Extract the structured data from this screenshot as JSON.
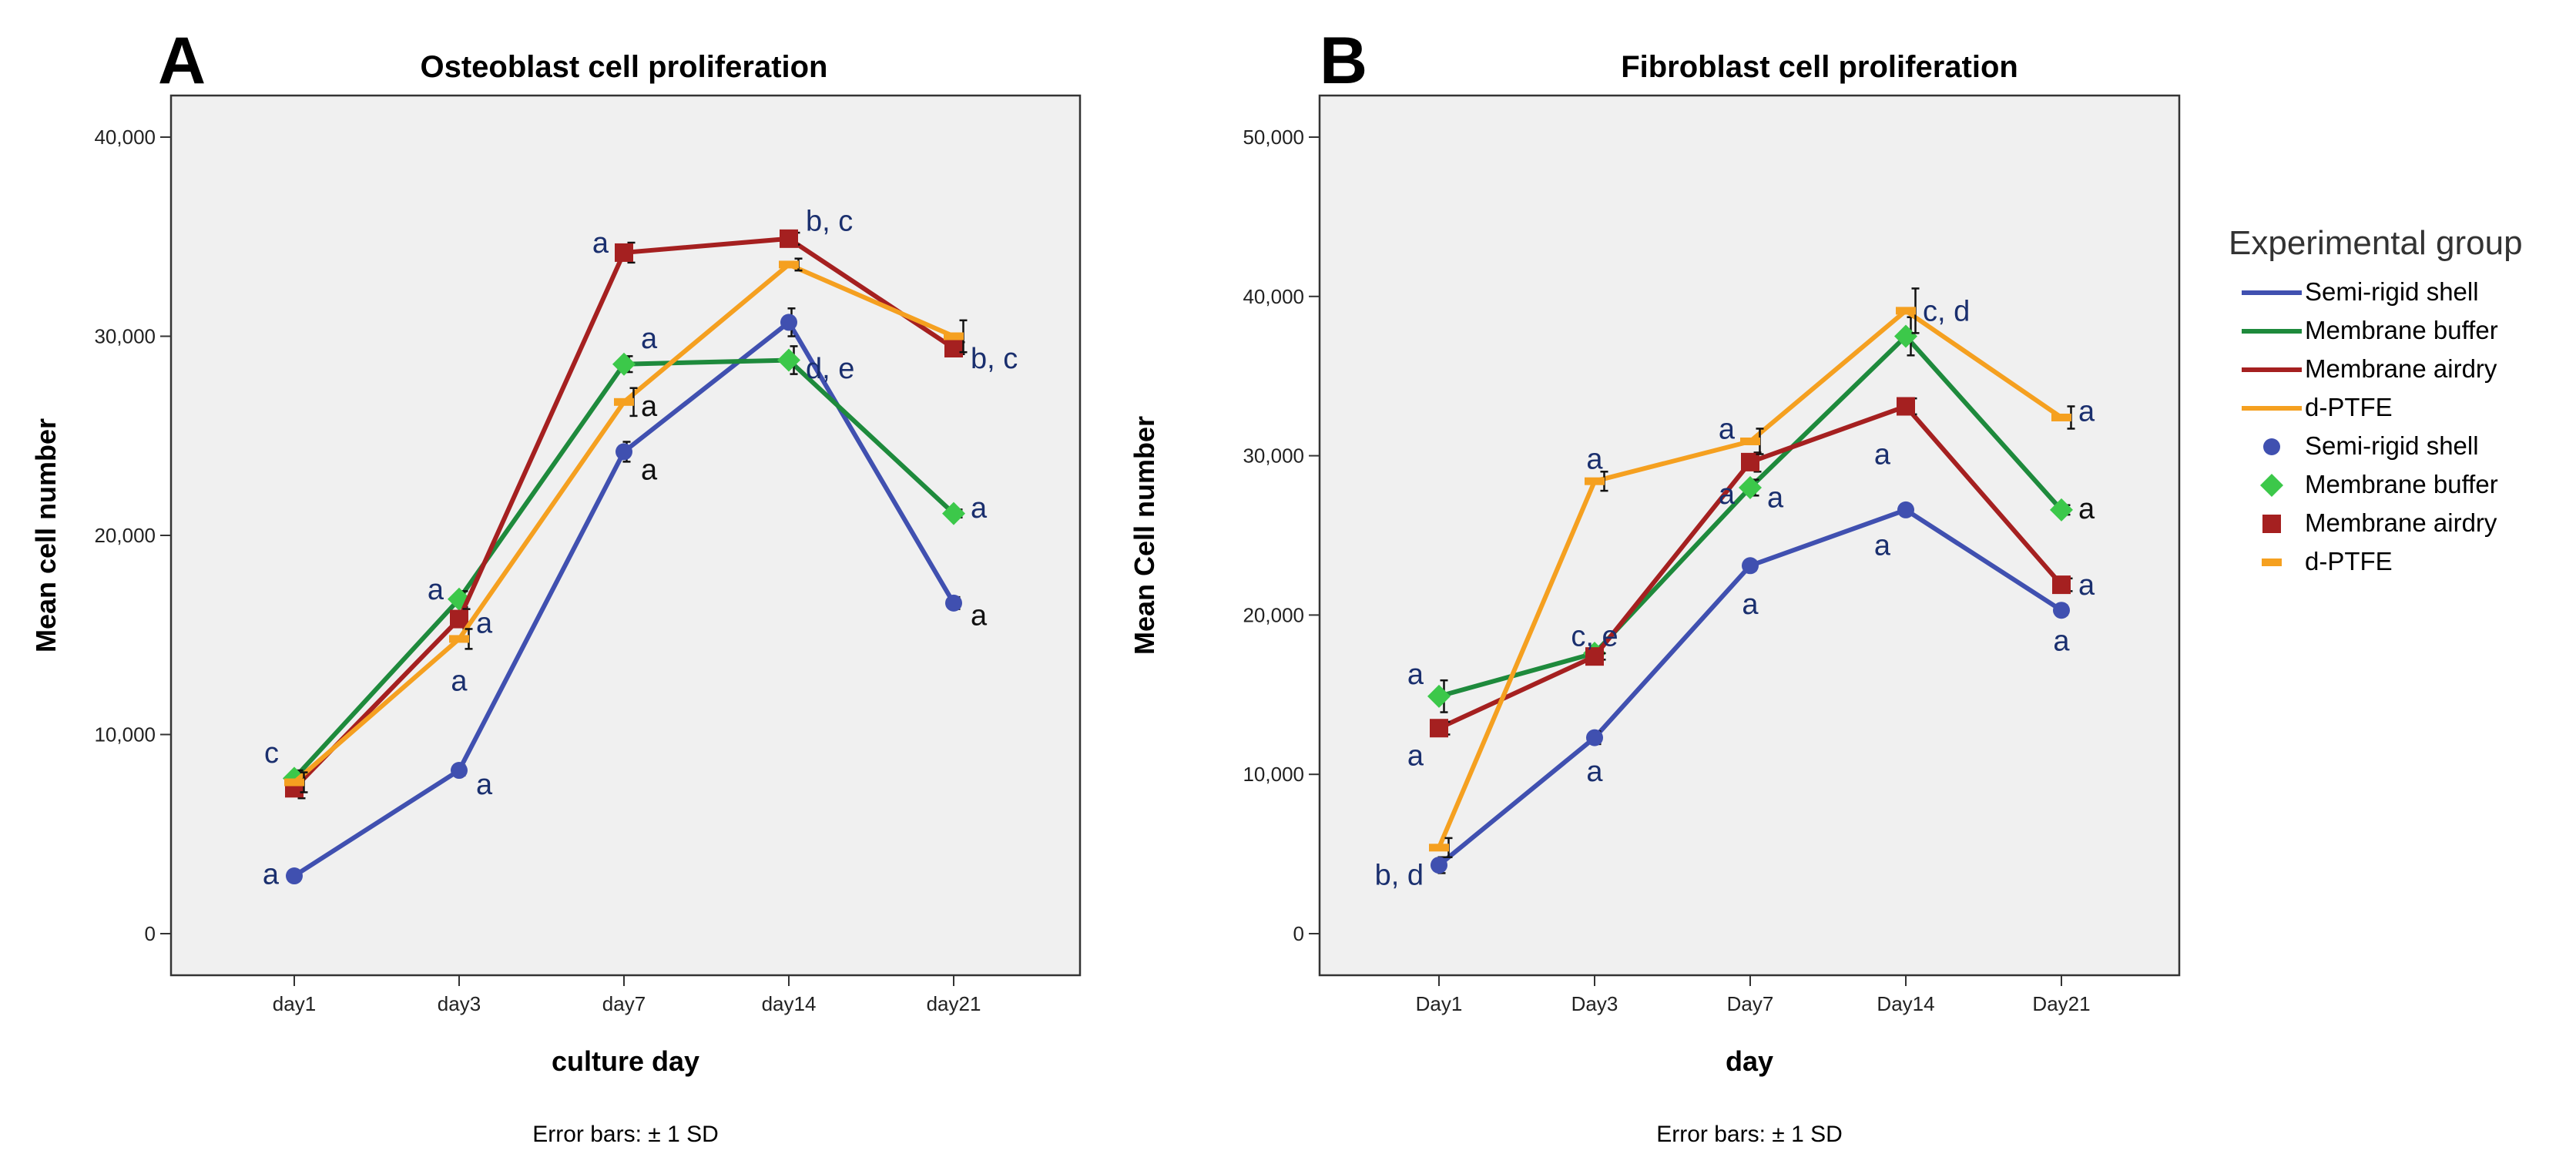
{
  "figure_footnote": "Error bars: ± 1  SD",
  "legend": {
    "title": "Experimental group",
    "line_entries": [
      "Semi-rigid shell",
      "Membrane buffer",
      "Membrane airdry",
      "d-PTFE"
    ],
    "marker_entries": [
      "Semi-rigid shell",
      "Membrane buffer",
      "Membrane airdry",
      "d-PTFE"
    ]
  },
  "series_style": [
    {
      "name": "Semi-rigid shell",
      "color": "#4050b0",
      "marker": "circle"
    },
    {
      "name": "Membrane buffer",
      "color": "#1e8a3c",
      "marker_color": "#3cc84a",
      "marker": "diamond"
    },
    {
      "name": "Membrane airdry",
      "color": "#a52020",
      "marker": "square"
    },
    {
      "name": "d-PTFE",
      "color": "#f5a020",
      "marker": "dash"
    }
  ],
  "annotation_colors": {
    "navy": "#1a2f6e",
    "black": "#111111"
  },
  "chart_data": [
    {
      "type": "line",
      "panel_letter": "A",
      "title": "Osteoblast cell proliferation",
      "xlabel": "culture day",
      "ylabel": "Mean cell number",
      "ylim": [
        0,
        40000
      ],
      "yticks": [
        0,
        10000,
        20000,
        30000,
        40000
      ],
      "ytick_labels": [
        "0",
        "10,000",
        "20,000",
        "30,000",
        "40,000"
      ],
      "categories": [
        "day1",
        "day3",
        "day7",
        "day14",
        "day21"
      ],
      "footnote": "Error bars: ± 1  SD",
      "series": [
        {
          "name": "Semi-rigid shell",
          "values": [
            2900,
            8200,
            24200,
            30700,
            16600
          ],
          "sd": [
            150,
            250,
            500,
            700,
            300
          ]
        },
        {
          "name": "Membrane buffer",
          "values": [
            7800,
            16800,
            28600,
            28800,
            21100
          ],
          "sd": [
            400,
            400,
            400,
            700,
            200
          ]
        },
        {
          "name": "Membrane airdry",
          "values": [
            7300,
            15800,
            34200,
            34900,
            29400
          ],
          "sd": [
            500,
            500,
            500,
            300,
            300
          ]
        },
        {
          "name": "d-PTFE",
          "values": [
            7600,
            14800,
            26700,
            33600,
            30000
          ],
          "sd": [
            500,
            500,
            700,
            300,
            800
          ]
        }
      ],
      "annotations": [
        {
          "text": "c",
          "x": "day1",
          "y": 9100,
          "color": "navy",
          "align": "end"
        },
        {
          "text": "a",
          "x": "day1",
          "y": 3000,
          "color": "navy",
          "align": "end"
        },
        {
          "text": "a",
          "x": "day3",
          "y": 17300,
          "color": "navy",
          "align": "end"
        },
        {
          "text": "a",
          "x": "day3",
          "y": 15600,
          "color": "navy",
          "align": "start"
        },
        {
          "text": "a",
          "x": "day3",
          "y": 12700,
          "color": "navy",
          "align": "middle"
        },
        {
          "text": "a",
          "x": "day3",
          "y": 7500,
          "color": "navy",
          "align": "start"
        },
        {
          "text": "a",
          "x": "day7",
          "y": 34700,
          "color": "navy",
          "align": "end"
        },
        {
          "text": "a",
          "x": "day7",
          "y": 29900,
          "color": "navy",
          "align": "start"
        },
        {
          "text": "a",
          "x": "day7",
          "y": 26500,
          "color": "black",
          "align": "start"
        },
        {
          "text": "a",
          "x": "day7",
          "y": 23300,
          "color": "black",
          "align": "start"
        },
        {
          "text": "b, c",
          "x": "day14",
          "y": 35800,
          "color": "navy",
          "align": "start"
        },
        {
          "text": "d, e",
          "x": "day14",
          "y": 28400,
          "color": "navy",
          "align": "start"
        },
        {
          "text": "b, c",
          "x": "day21",
          "y": 28900,
          "color": "navy",
          "align": "start"
        },
        {
          "text": "a",
          "x": "day21",
          "y": 21400,
          "color": "navy",
          "align": "start"
        },
        {
          "text": "a",
          "x": "day21",
          "y": 16000,
          "color": "black",
          "align": "start"
        }
      ]
    },
    {
      "type": "line",
      "panel_letter": "B",
      "title": "Fibroblast cell proliferation",
      "xlabel": "day",
      "ylabel": "Mean Cell number",
      "ylim": [
        0,
        50000
      ],
      "yticks": [
        0,
        10000,
        20000,
        30000,
        40000,
        50000
      ],
      "ytick_labels": [
        "0",
        "10,000",
        "20,000",
        "30,000",
        "40,000",
        "50,000"
      ],
      "categories": [
        "Day1",
        "Day3",
        "Day7",
        "Day14",
        "Day21"
      ],
      "footnote": "Error bars: ± 1  SD",
      "series": [
        {
          "name": "Semi-rigid shell",
          "values": [
            4300,
            12300,
            23100,
            26600,
            20300
          ],
          "sd": [
            500,
            400,
            300,
            200,
            300
          ]
        },
        {
          "name": "Membrane buffer",
          "values": [
            14900,
            17600,
            28000,
            37500,
            26600
          ],
          "sd": [
            1000,
            300,
            500,
            1200,
            300
          ]
        },
        {
          "name": "Membrane airdry",
          "values": [
            12900,
            17400,
            29600,
            33100,
            21900
          ],
          "sd": [
            400,
            200,
            600,
            500,
            400
          ]
        },
        {
          "name": "d-PTFE",
          "values": [
            5400,
            28400,
            30900,
            39100,
            32400
          ],
          "sd": [
            600,
            600,
            800,
            1400,
            700
          ]
        }
      ],
      "annotations": [
        {
          "text": "a",
          "x": "Day1",
          "y": 16300,
          "color": "navy",
          "align": "end"
        },
        {
          "text": "a",
          "x": "Day1",
          "y": 11200,
          "color": "navy",
          "align": "end"
        },
        {
          "text": "b, d",
          "x": "Day1",
          "y": 3700,
          "color": "navy",
          "align": "end"
        },
        {
          "text": "a",
          "x": "Day3",
          "y": 29800,
          "color": "navy",
          "align": "middle"
        },
        {
          "text": "c, e",
          "x": "Day3",
          "y": 18700,
          "color": "navy",
          "align": "middle"
        },
        {
          "text": "a",
          "x": "Day3",
          "y": 10200,
          "color": "navy",
          "align": "middle"
        },
        {
          "text": "a",
          "x": "Day7",
          "y": 31700,
          "color": "navy",
          "align": "end"
        },
        {
          "text": "a",
          "x": "Day7",
          "y": 27600,
          "color": "navy",
          "align": "end"
        },
        {
          "text": "a",
          "x": "Day7",
          "y": 27400,
          "color": "navy",
          "align": "start"
        },
        {
          "text": "a",
          "x": "Day7",
          "y": 20700,
          "color": "navy",
          "align": "middle"
        },
        {
          "text": "c, d",
          "x": "Day14",
          "y": 39100,
          "color": "navy",
          "align": "start"
        },
        {
          "text": "a",
          "x": "Day14",
          "y": 30100,
          "color": "navy",
          "align": "end"
        },
        {
          "text": "a",
          "x": "Day14",
          "y": 24400,
          "color": "navy",
          "align": "end"
        },
        {
          "text": "a",
          "x": "Day21",
          "y": 32800,
          "color": "navy",
          "align": "start"
        },
        {
          "text": "a",
          "x": "Day21",
          "y": 26700,
          "color": "black",
          "align": "start"
        },
        {
          "text": "a",
          "x": "Day21",
          "y": 21900,
          "color": "navy",
          "align": "start"
        },
        {
          "text": "a",
          "x": "Day21",
          "y": 18400,
          "color": "navy",
          "align": "middle"
        }
      ]
    }
  ]
}
